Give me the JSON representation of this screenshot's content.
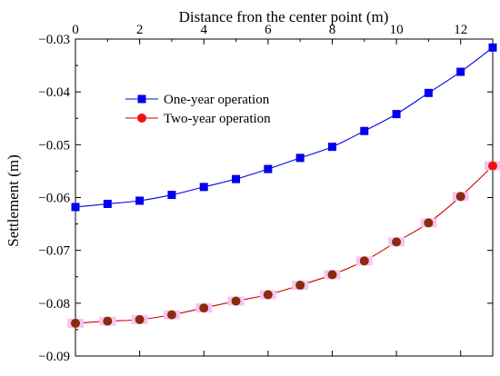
{
  "chart_data": {
    "type": "line",
    "title": "",
    "xlabel": "Distance fron the center point (m)",
    "ylabel": "Settlement (m)",
    "x_axis_position": "top",
    "xlim": [
      0,
      13
    ],
    "ylim": [
      -0.09,
      -0.03
    ],
    "y_reversed": true,
    "xticks": [
      0,
      2,
      4,
      6,
      8,
      10,
      12
    ],
    "xtick_labels": [
      "0",
      "2",
      "4",
      "6",
      "8",
      "10",
      "12"
    ],
    "yticks": [
      -0.03,
      -0.04,
      -0.05,
      -0.06,
      -0.07,
      -0.08,
      -0.09
    ],
    "ytick_labels": [
      "−0.03",
      "−0.04",
      "−0.05",
      "−0.06",
      "−0.07",
      "−0.08",
      "−0.09"
    ],
    "grid": false,
    "legend_position": "upper-left",
    "x": [
      0,
      1,
      2,
      3,
      4,
      5,
      6,
      7,
      8,
      9,
      10,
      11,
      12,
      13
    ],
    "series": [
      {
        "name": "One-year operation",
        "color": "#0000ee",
        "marker": "square",
        "values": [
          -0.0618,
          -0.0612,
          -0.0606,
          -0.0595,
          -0.058,
          -0.0565,
          -0.0546,
          -0.0525,
          -0.0504,
          -0.0474,
          -0.0442,
          -0.0402,
          -0.0362,
          -0.0316
        ]
      },
      {
        "name": "Two-year operation",
        "color": "#cc0000",
        "marker_color": "#8b2a10",
        "last_marker_color": "#ee1111",
        "marker": "circle",
        "values": [
          -0.0838,
          -0.0834,
          -0.0831,
          -0.0822,
          -0.0809,
          -0.0796,
          -0.0784,
          -0.0766,
          -0.0746,
          -0.072,
          -0.0684,
          -0.0648,
          -0.0598,
          -0.054
        ]
      }
    ]
  }
}
